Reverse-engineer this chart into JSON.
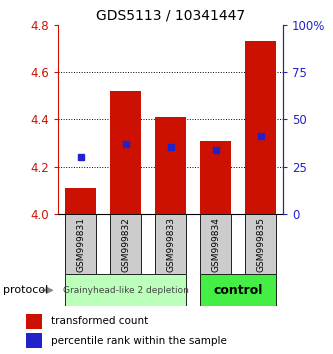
{
  "title": "GDS5113 / 10341447",
  "samples": [
    "GSM999831",
    "GSM999832",
    "GSM999833",
    "GSM999834",
    "GSM999835"
  ],
  "red_values": [
    4.11,
    4.52,
    4.41,
    4.31,
    4.73
  ],
  "blue_values": [
    4.24,
    4.295,
    4.283,
    4.27,
    4.33
  ],
  "y_min": 4.0,
  "y_max": 4.8,
  "y_ticks_left": [
    4.0,
    4.2,
    4.4,
    4.6,
    4.8
  ],
  "y_ticks_right_pct": [
    0,
    25,
    50,
    75,
    100
  ],
  "group1_indices": [
    0,
    1,
    2
  ],
  "group2_indices": [
    3,
    4
  ],
  "group1_label": "Grainyhead-like 2 depletion",
  "group2_label": "control",
  "protocol_label": "protocol",
  "legend_red": "transformed count",
  "legend_blue": "percentile rank within the sample",
  "bar_color": "#cc1100",
  "dot_color": "#2222cc",
  "group1_bg": "#bbffbb",
  "group2_bg": "#44ee44",
  "sample_bg": "#cccccc",
  "title_fontsize": 10,
  "tick_fontsize": 8.5,
  "sample_fontsize": 6.5,
  "proto_fontsize1": 6.5,
  "proto_fontsize2": 9,
  "legend_fontsize": 7.5,
  "bar_width": 0.7
}
